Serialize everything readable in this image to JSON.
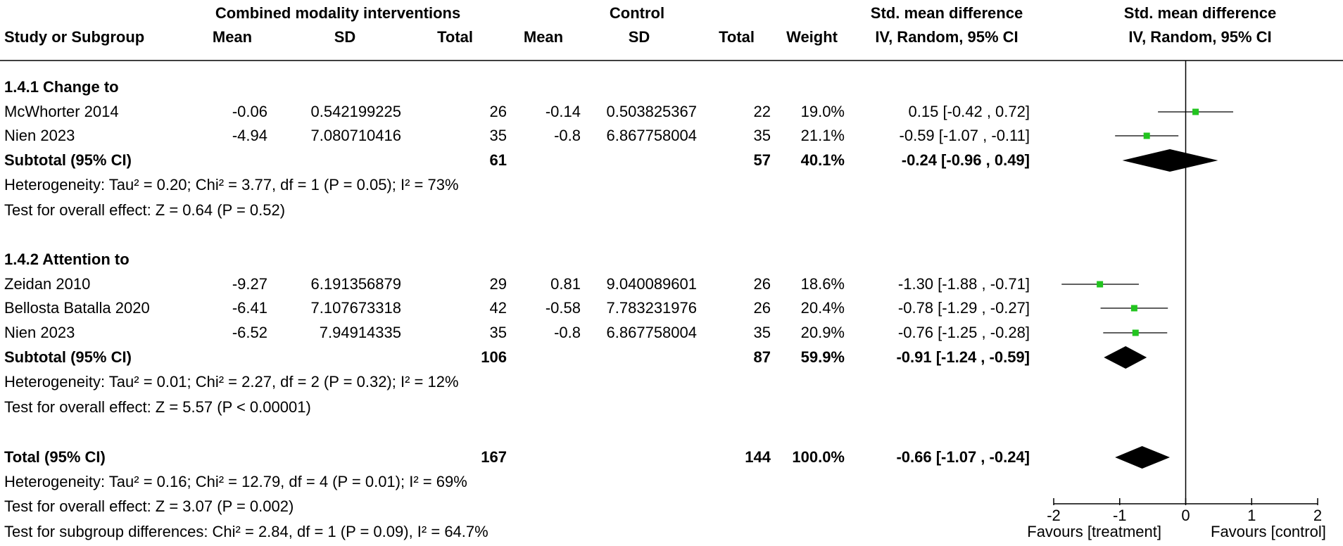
{
  "header": {
    "group1_title": "Combined modality interventions",
    "group2_title": "Control",
    "effect_title": "Std. mean difference",
    "plot_title": "Std. mean difference",
    "columns": {
      "study": "Study or Subgroup",
      "mean1": "Mean",
      "sd1": "SD",
      "total1": "Total",
      "mean2": "Mean",
      "sd2": "SD",
      "total2": "Total",
      "weight": "Weight",
      "ci": "IV, Random, 95% CI",
      "plot_ci": "IV, Random, 95% CI"
    }
  },
  "subgroups": [
    {
      "title": "1.4.1 Change to",
      "studies": [
        {
          "name": "McWhorter 2014",
          "mean1": "-0.06",
          "sd1": "0.542199225",
          "total1": "26",
          "mean2": "-0.14",
          "sd2": "0.503825367",
          "total2": "22",
          "weight": "19.0%",
          "ci": "0.15 [-0.42 , 0.72]"
        },
        {
          "name": "Nien 2023",
          "mean1": "-4.94",
          "sd1": "7.080710416",
          "total1": "35",
          "mean2": "-0.8",
          "sd2": "6.867758004",
          "total2": "35",
          "weight": "21.1%",
          "ci": "-0.59 [-1.07 , -0.11]"
        }
      ],
      "subtotal": {
        "label": "Subtotal (95% CI)",
        "total1": "61",
        "total2": "57",
        "weight": "40.1%",
        "ci": "-0.24 [-0.96 , 0.49]"
      },
      "heterogeneity": "Heterogeneity: Tau² = 0.20; Chi² = 3.77, df = 1 (P = 0.05); I² = 73%",
      "overall": "Test for overall effect: Z = 0.64 (P = 0.52)"
    },
    {
      "title": "1.4.2 Attention to",
      "studies": [
        {
          "name": "Zeidan 2010",
          "mean1": "-9.27",
          "sd1": "6.191356879",
          "total1": "29",
          "mean2": "0.81",
          "sd2": "9.040089601",
          "total2": "26",
          "weight": "18.6%",
          "ci": "-1.30 [-1.88 , -0.71]"
        },
        {
          "name": "Bellosta Batalla 2020",
          "mean1": "-6.41",
          "sd1": "7.107673318",
          "total1": "42",
          "mean2": "-0.58",
          "sd2": "7.783231976",
          "total2": "26",
          "weight": "20.4%",
          "ci": "-0.78 [-1.29 , -0.27]"
        },
        {
          "name": "Nien 2023",
          "mean1": "-6.52",
          "sd1": "7.94914335",
          "total1": "35",
          "mean2": "-0.8",
          "sd2": "6.867758004",
          "total2": "35",
          "weight": "20.9%",
          "ci": "-0.76 [-1.25 , -0.28]"
        }
      ],
      "subtotal": {
        "label": "Subtotal (95% CI)",
        "total1": "106",
        "total2": "87",
        "weight": "59.9%",
        "ci": "-0.91 [-1.24 , -0.59]"
      },
      "heterogeneity": "Heterogeneity: Tau² = 0.01; Chi² = 2.27, df = 2 (P = 0.32); I² = 12%",
      "overall": "Test for overall effect: Z = 5.57 (P < 0.00001)"
    }
  ],
  "total": {
    "label": "Total (95% CI)",
    "total1": "167",
    "total2": "144",
    "weight": "100.0%",
    "ci": "-0.66 [-1.07 , -0.24]",
    "heterogeneity": "Heterogeneity: Tau² = 0.16; Chi² = 12.79, df = 4 (P = 0.01); I² = 69%",
    "overall": "Test for overall effect: Z = 3.07 (P = 0.002)",
    "subgroup_diff": "Test for subgroup differences: Chi² = 2.84, df = 1 (P = 0.09), I² = 64.7%"
  },
  "chart_data": {
    "type": "forest",
    "x_range": [
      -2,
      2
    ],
    "ticks": [
      -2,
      -1,
      0,
      1,
      2
    ],
    "tick_labels": [
      "-2",
      "-1",
      "0",
      "1",
      "2"
    ],
    "favours_left": "Favours [treatment]",
    "favours_right": "Favours [control]",
    "marker_color": "#22c41f",
    "diamond_color": "#000000",
    "study_points": [
      {
        "name": "McWhorter 2014",
        "est": 0.15,
        "lo": -0.42,
        "hi": 0.72
      },
      {
        "name": "Nien 2023",
        "est": -0.59,
        "lo": -1.07,
        "hi": -0.11
      },
      {
        "name": "Zeidan 2010",
        "est": -1.3,
        "lo": -1.88,
        "hi": -0.71
      },
      {
        "name": "Bellosta Batalla 2020",
        "est": -0.78,
        "lo": -1.29,
        "hi": -0.27
      },
      {
        "name": "Nien 2023",
        "est": -0.76,
        "lo": -1.25,
        "hi": -0.28
      }
    ],
    "diamonds": [
      {
        "name": "Subtotal 1.4.1",
        "est": -0.24,
        "lo": -0.96,
        "hi": 0.49
      },
      {
        "name": "Subtotal 1.4.2",
        "est": -0.91,
        "lo": -1.24,
        "hi": -0.59
      },
      {
        "name": "Total",
        "est": -0.66,
        "lo": -1.07,
        "hi": -0.24
      }
    ]
  }
}
